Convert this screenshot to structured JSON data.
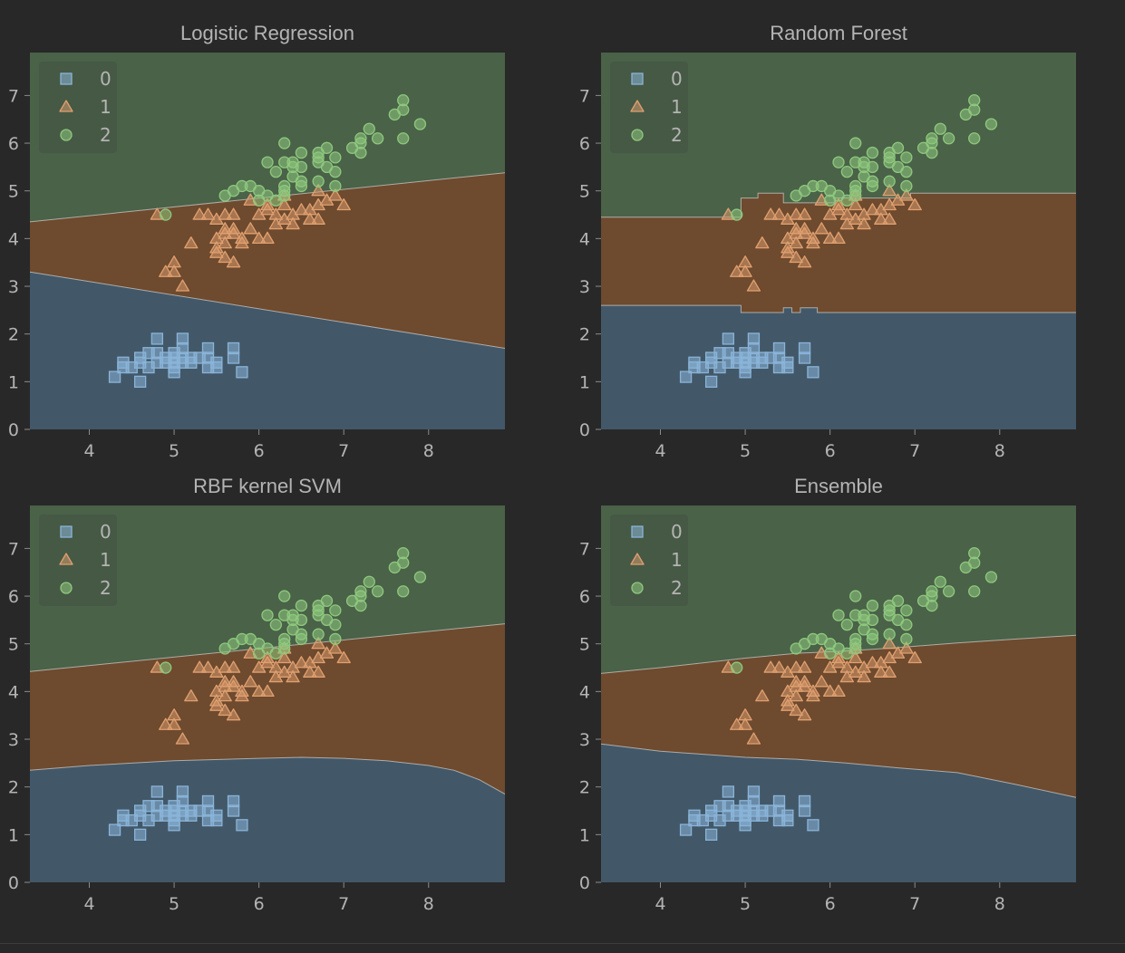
{
  "colors": {
    "background": "#282828",
    "region_0": "#425868",
    "region_1": "#6e4a2e",
    "region_2": "#4a6248",
    "marker_0": "#8ab4d8",
    "marker_1": "#e0a070",
    "marker_2": "#8ec87e",
    "text": "#b4b4b4",
    "boundary": "#d2d2d2"
  },
  "legend_labels": [
    "0",
    "1",
    "2"
  ],
  "chart_data": [
    {
      "type": "scatter",
      "title": "Logistic Regression",
      "xlim": [
        3.3,
        8.9
      ],
      "ylim": [
        0,
        7.9
      ],
      "xticks": [
        "4",
        "5",
        "6",
        "7",
        "8"
      ],
      "yticks": [
        "0",
        "1",
        "2",
        "3",
        "4",
        "5",
        "6",
        "7"
      ],
      "legend": "top-left",
      "boundary_0_1": [
        [
          3.3,
          3.3
        ],
        [
          8.9,
          1.7
        ]
      ],
      "boundary_1_2": [
        [
          3.3,
          4.35
        ],
        [
          8.9,
          5.38
        ]
      ]
    },
    {
      "type": "scatter",
      "title": "Random Forest",
      "xlim": [
        3.3,
        8.9
      ],
      "ylim": [
        0,
        7.9
      ],
      "xticks": [
        "4",
        "5",
        "6",
        "7",
        "8"
      ],
      "yticks": [
        "0",
        "1",
        "2",
        "3",
        "4",
        "5",
        "6",
        "7"
      ],
      "legend": "top-left",
      "boundary_0_1": [
        [
          3.3,
          2.6
        ],
        [
          4.95,
          2.6
        ],
        [
          4.95,
          2.45
        ],
        [
          5.45,
          2.45
        ],
        [
          5.45,
          2.55
        ],
        [
          5.55,
          2.55
        ],
        [
          5.55,
          2.45
        ],
        [
          5.65,
          2.45
        ],
        [
          5.65,
          2.55
        ],
        [
          5.85,
          2.55
        ],
        [
          5.85,
          2.45
        ],
        [
          8.9,
          2.45
        ]
      ],
      "boundary_1_2": [
        [
          3.3,
          4.45
        ],
        [
          4.95,
          4.45
        ],
        [
          4.95,
          4.85
        ],
        [
          5.15,
          4.85
        ],
        [
          5.15,
          4.95
        ],
        [
          5.45,
          4.95
        ],
        [
          5.45,
          4.75
        ],
        [
          6.05,
          4.75
        ],
        [
          6.05,
          4.85
        ],
        [
          6.95,
          4.85
        ],
        [
          6.95,
          4.95
        ],
        [
          8.9,
          4.95
        ]
      ]
    },
    {
      "type": "scatter",
      "title": "RBF kernel SVM",
      "xlim": [
        3.3,
        8.9
      ],
      "ylim": [
        0,
        7.9
      ],
      "xticks": [
        "4",
        "5",
        "6",
        "7",
        "8"
      ],
      "yticks": [
        "0",
        "1",
        "2",
        "3",
        "4",
        "5",
        "6",
        "7"
      ],
      "legend": "top-left",
      "boundary_0_1": [
        [
          3.3,
          2.35
        ],
        [
          4.0,
          2.45
        ],
        [
          5.0,
          2.55
        ],
        [
          6.0,
          2.6
        ],
        [
          6.5,
          2.62
        ],
        [
          7.0,
          2.6
        ],
        [
          7.5,
          2.55
        ],
        [
          8.0,
          2.45
        ],
        [
          8.3,
          2.35
        ],
        [
          8.6,
          2.15
        ],
        [
          8.9,
          1.85
        ]
      ],
      "boundary_1_2": [
        [
          3.3,
          4.42
        ],
        [
          8.9,
          5.42
        ]
      ]
    },
    {
      "type": "scatter",
      "title": "Ensemble",
      "xlim": [
        3.3,
        8.9
      ],
      "ylim": [
        0,
        7.9
      ],
      "xticks": [
        "4",
        "5",
        "6",
        "7",
        "8"
      ],
      "yticks": [
        "0",
        "1",
        "2",
        "3",
        "4",
        "5",
        "6",
        "7"
      ],
      "legend": "top-left",
      "boundary_0_1": [
        [
          3.3,
          2.9
        ],
        [
          4.0,
          2.75
        ],
        [
          5.0,
          2.62
        ],
        [
          5.6,
          2.58
        ],
        [
          6.2,
          2.5
        ],
        [
          6.8,
          2.4
        ],
        [
          7.5,
          2.3
        ],
        [
          8.2,
          2.05
        ],
        [
          8.9,
          1.78
        ]
      ],
      "boundary_1_2": [
        [
          3.3,
          4.38
        ],
        [
          4.0,
          4.5
        ],
        [
          5.0,
          4.7
        ],
        [
          5.6,
          4.8
        ],
        [
          6.2,
          4.85
        ],
        [
          6.8,
          4.92
        ],
        [
          7.5,
          5.02
        ],
        [
          8.2,
          5.1
        ],
        [
          8.9,
          5.18
        ]
      ]
    }
  ],
  "points": {
    "class_0": [
      [
        4.3,
        1.1
      ],
      [
        4.4,
        1.3
      ],
      [
        4.4,
        1.4
      ],
      [
        4.5,
        1.3
      ],
      [
        4.6,
        1.0
      ],
      [
        4.6,
        1.4
      ],
      [
        4.6,
        1.5
      ],
      [
        4.7,
        1.3
      ],
      [
        4.7,
        1.6
      ],
      [
        4.8,
        1.4
      ],
      [
        4.8,
        1.6
      ],
      [
        4.8,
        1.9
      ],
      [
        4.9,
        1.4
      ],
      [
        4.9,
        1.5
      ],
      [
        5.0,
        1.2
      ],
      [
        5.0,
        1.3
      ],
      [
        5.0,
        1.4
      ],
      [
        5.0,
        1.5
      ],
      [
        5.0,
        1.6
      ],
      [
        5.1,
        1.4
      ],
      [
        5.1,
        1.5
      ],
      [
        5.1,
        1.7
      ],
      [
        5.1,
        1.9
      ],
      [
        5.2,
        1.4
      ],
      [
        5.2,
        1.5
      ],
      [
        5.3,
        1.5
      ],
      [
        5.4,
        1.3
      ],
      [
        5.4,
        1.5
      ],
      [
        5.4,
        1.7
      ],
      [
        5.5,
        1.3
      ],
      [
        5.5,
        1.4
      ],
      [
        5.7,
        1.5
      ],
      [
        5.7,
        1.7
      ],
      [
        5.8,
        1.2
      ]
    ],
    "class_1": [
      [
        4.9,
        3.3
      ],
      [
        5.0,
        3.3
      ],
      [
        5.0,
        3.5
      ],
      [
        5.1,
        3.0
      ],
      [
        5.2,
        3.9
      ],
      [
        5.4,
        4.5
      ],
      [
        5.5,
        3.7
      ],
      [
        5.5,
        3.8
      ],
      [
        5.5,
        4.0
      ],
      [
        5.5,
        4.4
      ],
      [
        5.6,
        3.6
      ],
      [
        5.6,
        3.9
      ],
      [
        5.6,
        4.1
      ],
      [
        5.6,
        4.2
      ],
      [
        5.6,
        4.5
      ],
      [
        5.7,
        3.5
      ],
      [
        5.7,
        4.1
      ],
      [
        5.7,
        4.2
      ],
      [
        5.7,
        4.5
      ],
      [
        5.8,
        3.9
      ],
      [
        5.8,
        4.0
      ],
      [
        5.9,
        4.2
      ],
      [
        5.9,
        4.8
      ],
      [
        6.0,
        4.0
      ],
      [
        6.0,
        4.5
      ],
      [
        6.1,
        4.0
      ],
      [
        6.1,
        4.6
      ],
      [
        6.1,
        4.7
      ],
      [
        6.2,
        4.3
      ],
      [
        6.2,
        4.5
      ],
      [
        6.3,
        4.4
      ],
      [
        6.3,
        4.7
      ],
      [
        6.3,
        4.9
      ],
      [
        6.4,
        4.3
      ],
      [
        6.4,
        4.5
      ],
      [
        6.5,
        4.6
      ],
      [
        6.6,
        4.4
      ],
      [
        6.6,
        4.6
      ],
      [
        6.7,
        4.4
      ],
      [
        6.7,
        4.7
      ],
      [
        6.7,
        5.0
      ],
      [
        6.8,
        4.8
      ],
      [
        6.9,
        4.9
      ],
      [
        7.0,
        4.7
      ],
      [
        4.8,
        4.5
      ],
      [
        5.3,
        4.5
      ]
    ],
    "class_2": [
      [
        4.9,
        4.5
      ],
      [
        5.6,
        4.9
      ],
      [
        5.7,
        5.0
      ],
      [
        5.8,
        5.1
      ],
      [
        5.9,
        5.1
      ],
      [
        6.0,
        4.8
      ],
      [
        6.0,
        5.0
      ],
      [
        6.1,
        4.9
      ],
      [
        6.1,
        5.6
      ],
      [
        6.2,
        4.8
      ],
      [
        6.2,
        5.4
      ],
      [
        6.3,
        4.9
      ],
      [
        6.3,
        5.0
      ],
      [
        6.3,
        5.1
      ],
      [
        6.3,
        5.6
      ],
      [
        6.3,
        6.0
      ],
      [
        6.4,
        5.3
      ],
      [
        6.4,
        5.5
      ],
      [
        6.4,
        5.6
      ],
      [
        6.5,
        5.1
      ],
      [
        6.5,
        5.2
      ],
      [
        6.5,
        5.5
      ],
      [
        6.5,
        5.8
      ],
      [
        6.7,
        5.2
      ],
      [
        6.7,
        5.6
      ],
      [
        6.7,
        5.7
      ],
      [
        6.7,
        5.8
      ],
      [
        6.8,
        5.5
      ],
      [
        6.8,
        5.9
      ],
      [
        6.9,
        5.1
      ],
      [
        6.9,
        5.4
      ],
      [
        6.9,
        5.7
      ],
      [
        7.1,
        5.9
      ],
      [
        7.2,
        5.8
      ],
      [
        7.2,
        6.0
      ],
      [
        7.2,
        6.1
      ],
      [
        7.3,
        6.3
      ],
      [
        7.4,
        6.1
      ],
      [
        7.6,
        6.6
      ],
      [
        7.7,
        6.1
      ],
      [
        7.7,
        6.7
      ],
      [
        7.7,
        6.9
      ],
      [
        7.9,
        6.4
      ]
    ]
  }
}
